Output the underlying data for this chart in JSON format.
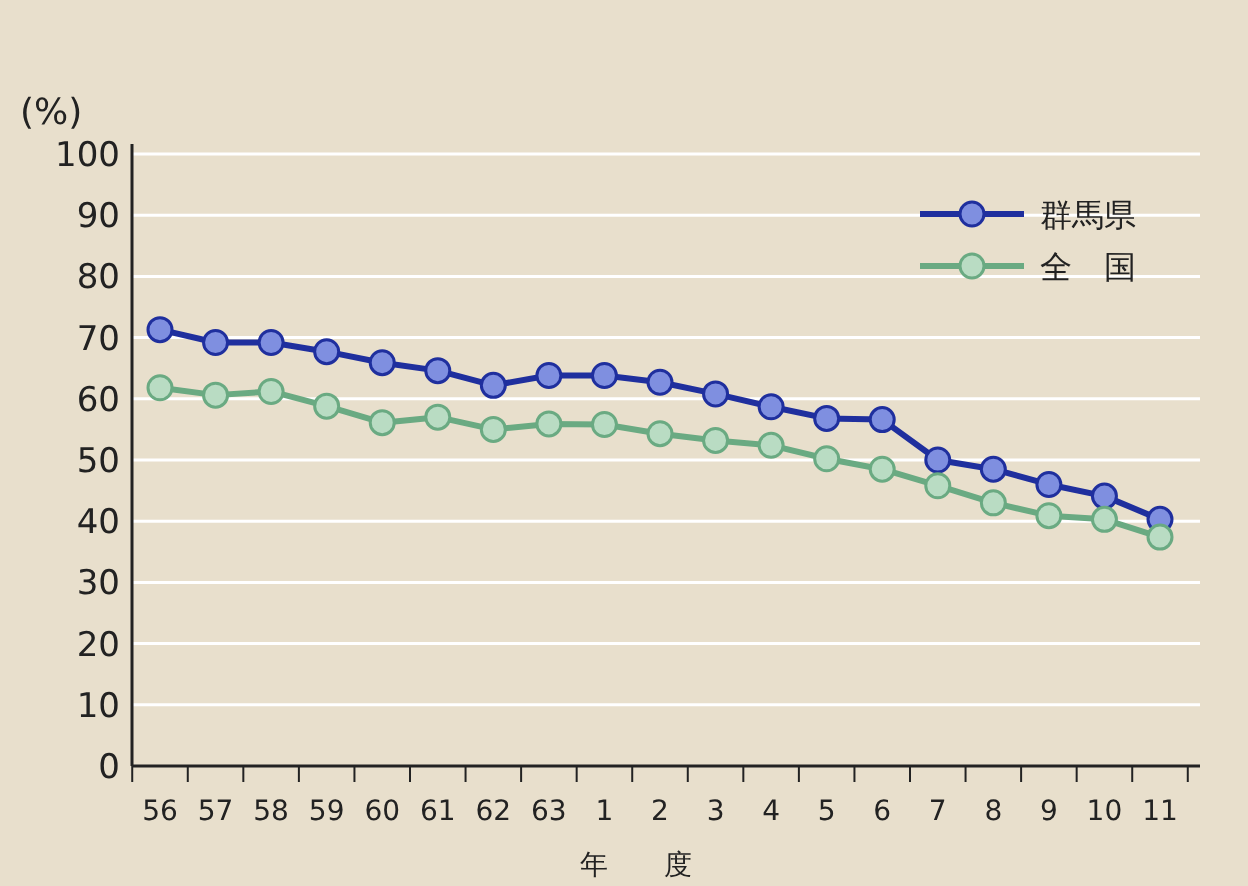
{
  "chart_data": {
    "type": "line",
    "ylabel": "(%)",
    "xlabel": "年　　度",
    "categories": [
      "56",
      "57",
      "58",
      "59",
      "60",
      "61",
      "62",
      "63",
      "1",
      "2",
      "3",
      "4",
      "5",
      "6",
      "7",
      "8",
      "9",
      "10",
      "11"
    ],
    "series": [
      {
        "name": "群馬県",
        "color": "#1f2f9e",
        "values": [
          71.3,
          69.2,
          69.2,
          67.7,
          65.9,
          64.6,
          62.2,
          63.8,
          63.8,
          62.7,
          60.8,
          58.7,
          56.8,
          56.6,
          50,
          48.5,
          46,
          44.1,
          40.3
        ]
      },
      {
        "name": "全　国",
        "color": "#6aaa82",
        "values": [
          61.8,
          60.6,
          61.2,
          58.8,
          56.1,
          57,
          55,
          55.9,
          55.8,
          54.3,
          53.2,
          52.4,
          50.2,
          48.5,
          45.8,
          43,
          40.9,
          40.3,
          37.4
        ]
      }
    ],
    "ylim": [
      0,
      100
    ],
    "yticks": [
      0,
      10,
      20,
      30,
      40,
      50,
      60,
      70,
      80,
      90,
      100
    ],
    "grid": "y",
    "legend": "top right",
    "marker": "circle",
    "line_style": "solid"
  }
}
